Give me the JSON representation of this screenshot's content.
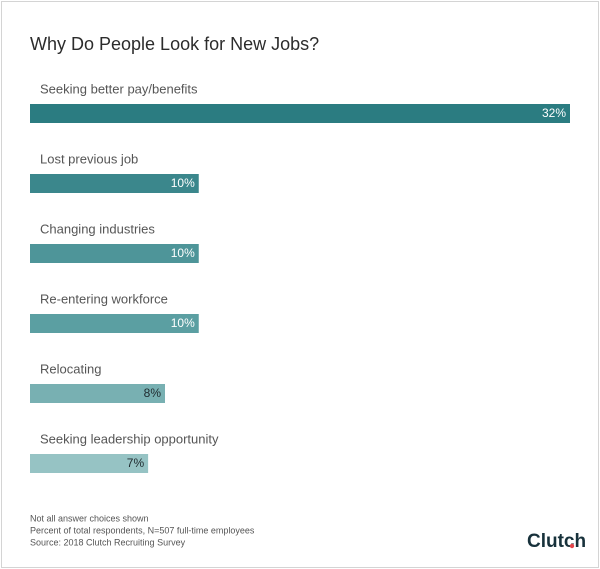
{
  "chart_data": {
    "type": "bar",
    "orientation": "horizontal",
    "title": "Why Do People Look for New Jobs?",
    "categories": [
      "Seeking better pay/benefits",
      "Lost previous job",
      "Changing industries",
      "Re-entering workforce",
      "Relocating",
      "Seeking leadership opportunity"
    ],
    "values": [
      32,
      10,
      10,
      10,
      8,
      7
    ],
    "value_labels": [
      "32%",
      "10%",
      "10%",
      "10%",
      "8%",
      "7%"
    ],
    "colors": [
      "#2b7c81",
      "#3b878c",
      "#4e9599",
      "#5b9fa2",
      "#78b0b2",
      "#96c3c4"
    ],
    "label_colors": [
      "#ffffff",
      "#ffffff",
      "#ffffff",
      "#ffffff",
      "#1f2a2e",
      "#1f2a2e"
    ],
    "notes": [
      "Not all answer choices shown",
      "Percent of total respondents, N=507 full-time employees",
      "Source: 2018 Clutch Recruiting Survey"
    ],
    "logo": "Clutch"
  }
}
